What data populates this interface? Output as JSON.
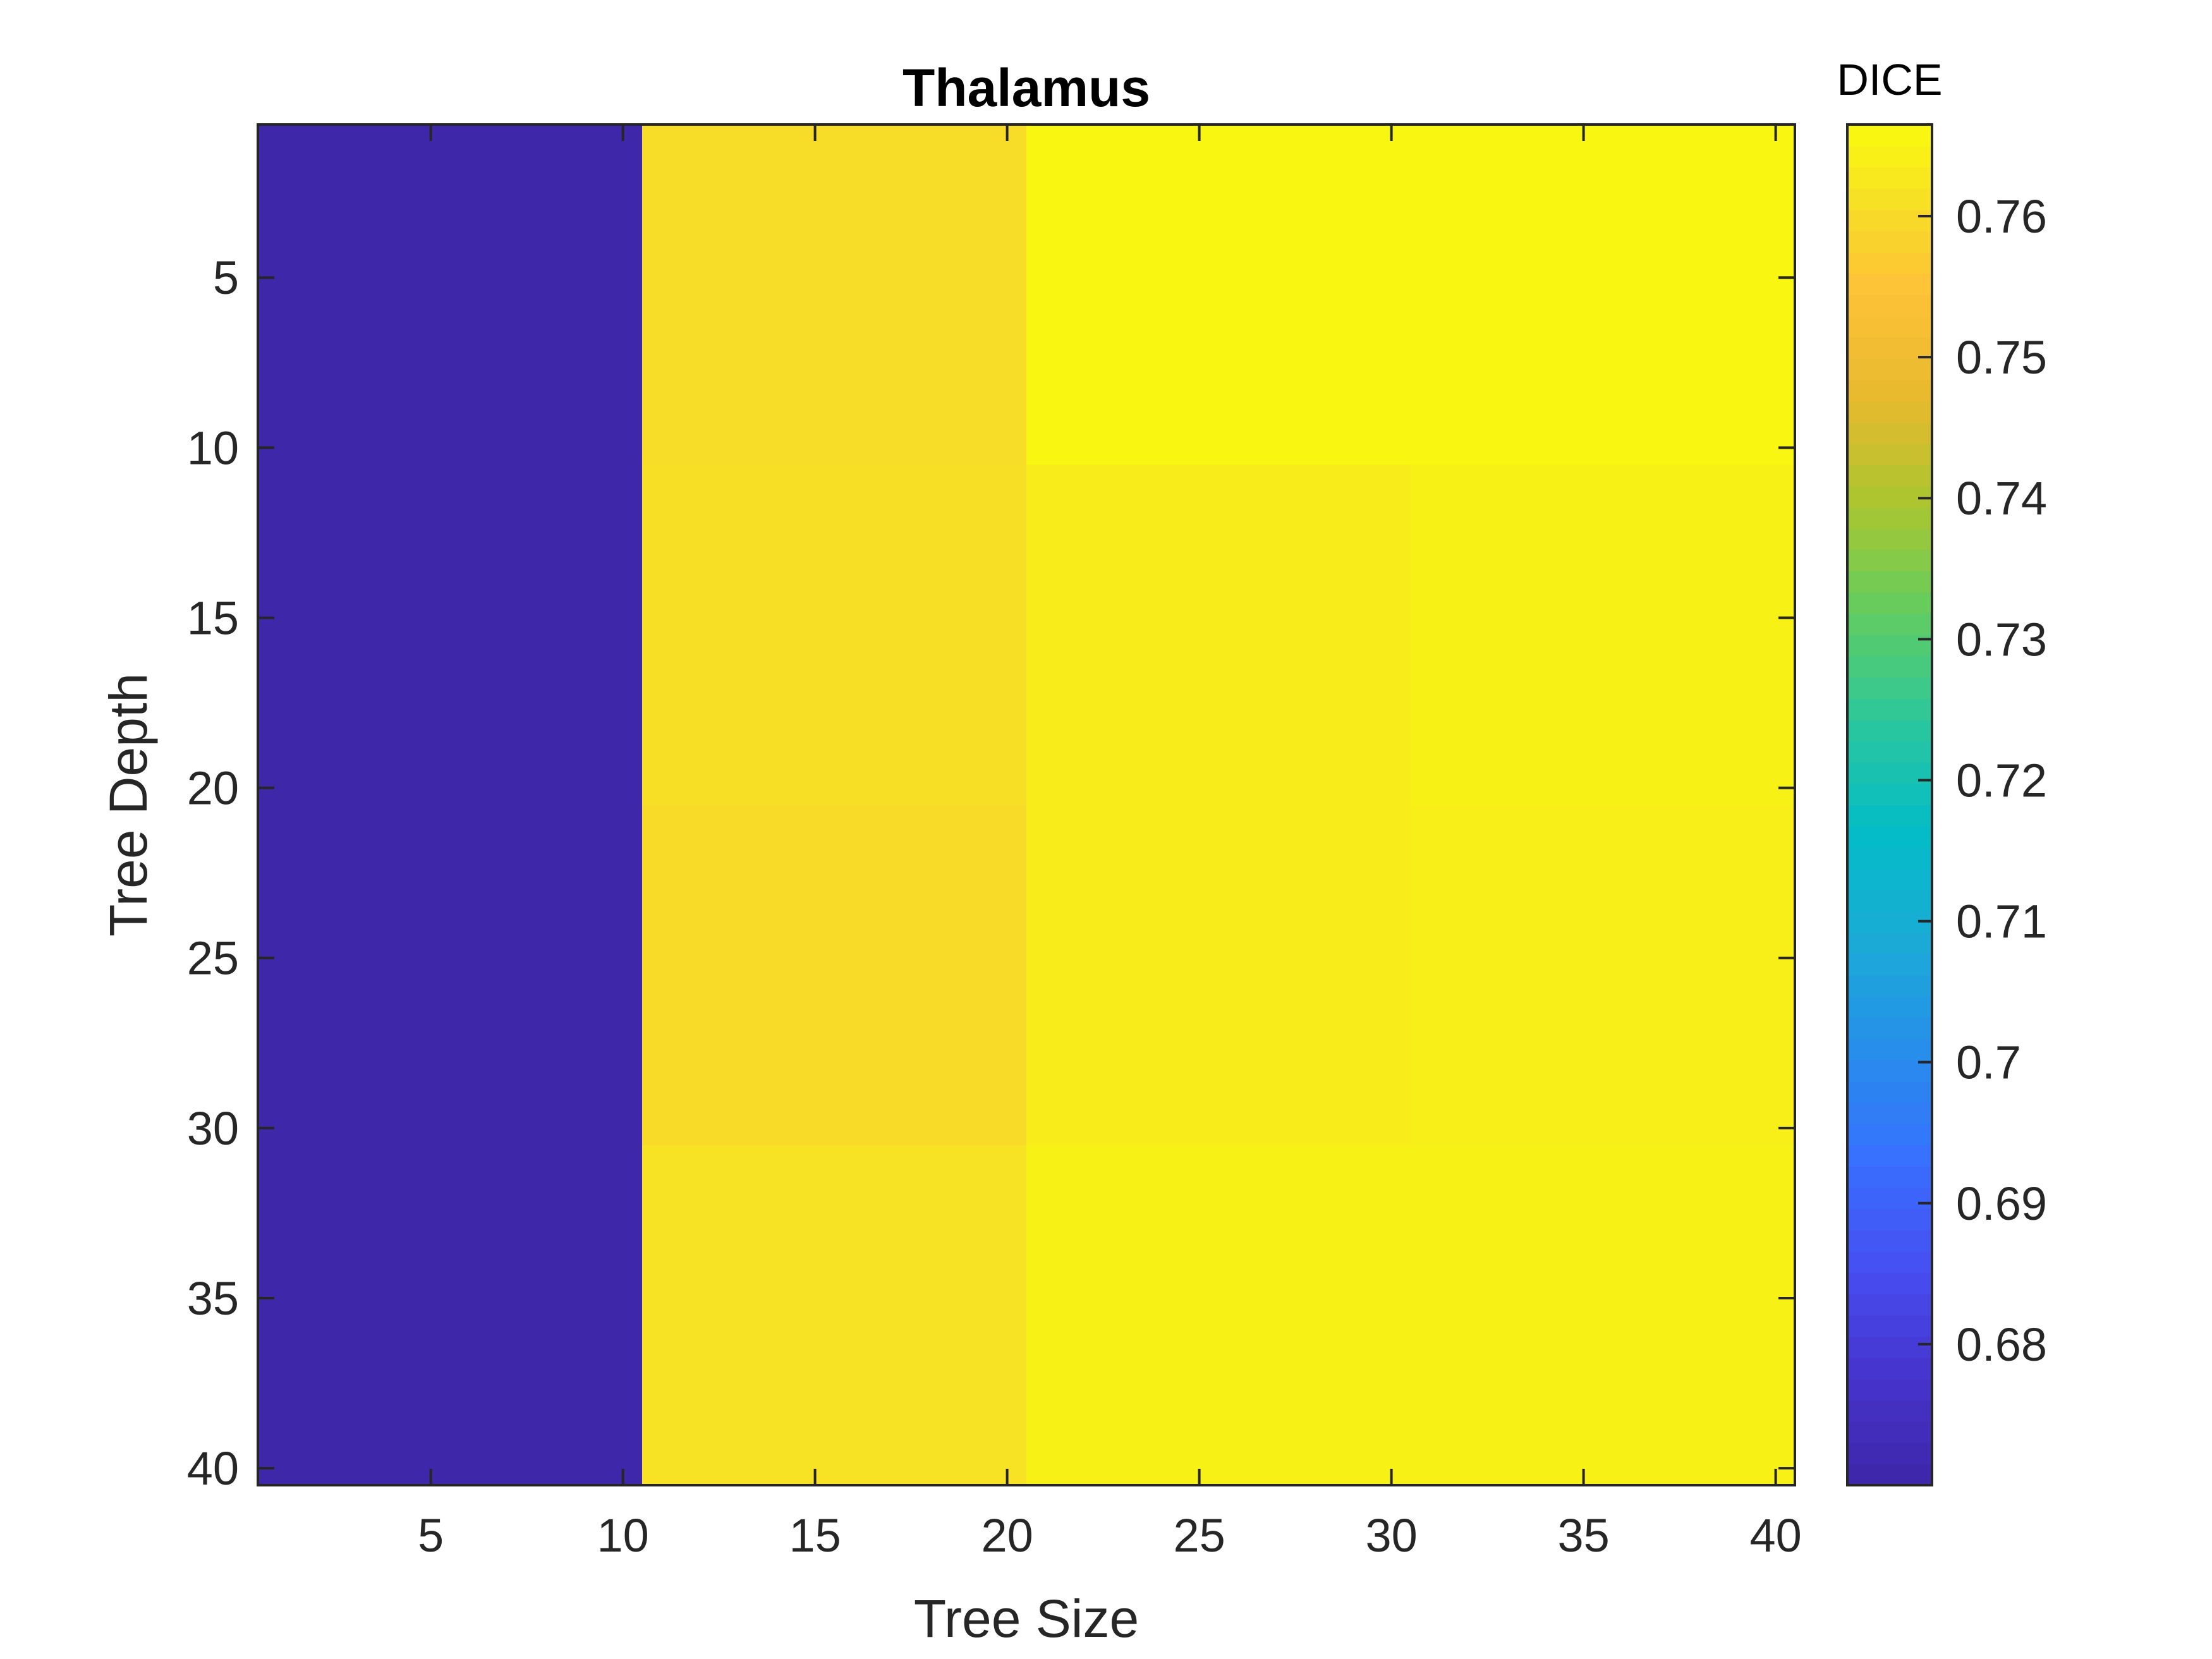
{
  "chart_data": {
    "type": "heatmap",
    "title": "Thalamus",
    "xlabel": "Tree Size",
    "ylabel": "Tree Depth",
    "x_range": [
      0.5,
      40.5
    ],
    "y_range": [
      0.5,
      40.5
    ],
    "y_reversed": true,
    "x_ticks": [
      5,
      10,
      15,
      20,
      25,
      30,
      35,
      40
    ],
    "y_ticks": [
      5,
      10,
      15,
      20,
      25,
      30,
      35,
      40
    ],
    "x_blocks": [
      [
        0.5,
        10.5
      ],
      [
        10.5,
        20.5
      ],
      [
        20.5,
        30.5
      ],
      [
        30.5,
        40.5
      ]
    ],
    "y_blocks": [
      [
        0.5,
        10.5
      ],
      [
        10.5,
        20.5
      ],
      [
        20.5,
        30.5
      ],
      [
        30.5,
        40.5
      ]
    ],
    "values": [
      [
        0.6705,
        0.7605,
        0.7655,
        0.7655
      ],
      [
        0.6705,
        0.761,
        0.7635,
        0.7645
      ],
      [
        0.6705,
        0.76,
        0.7635,
        0.764
      ],
      [
        0.6705,
        0.7615,
        0.7645,
        0.7645
      ]
    ],
    "grid": false,
    "colorbar": {
      "title": "DICE",
      "position": "right",
      "colormap": "parula",
      "range": [
        0.67,
        0.7665
      ],
      "ticks": [
        0.68,
        0.69,
        0.7,
        0.71,
        0.72,
        0.73,
        0.74,
        0.75,
        0.76
      ],
      "tick_labels": [
        "0.68",
        "0.69",
        "0.7",
        "0.71",
        "0.72",
        "0.73",
        "0.74",
        "0.75",
        "0.76"
      ]
    }
  }
}
